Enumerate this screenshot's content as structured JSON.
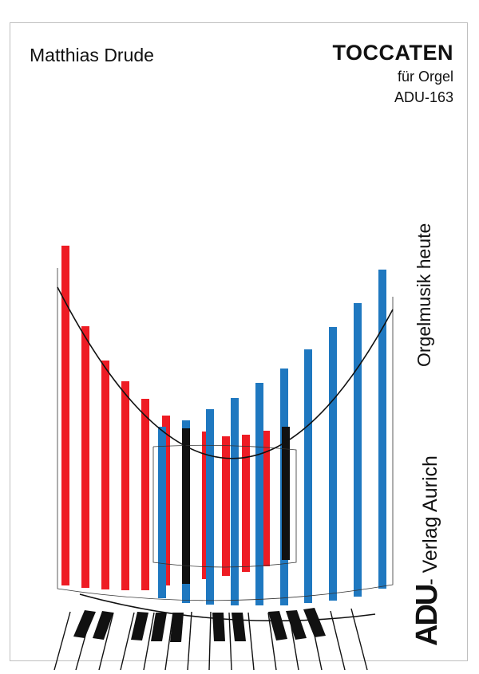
{
  "cover": {
    "composer": "Matthias Drude",
    "title": "TOCCATEN",
    "subtitle": "für Orgel",
    "catalog_number": "ADU-163",
    "series": "Orgelmusik heute",
    "publisher_logo": "ADU",
    "publisher_name": "- Verlag Aurich"
  },
  "colors": {
    "red": "#ee1c24",
    "blue": "#1f78c0",
    "black": "#111111"
  },
  "icons": [
    "organ-pipes-illustration",
    "keyboard-illustration"
  ]
}
